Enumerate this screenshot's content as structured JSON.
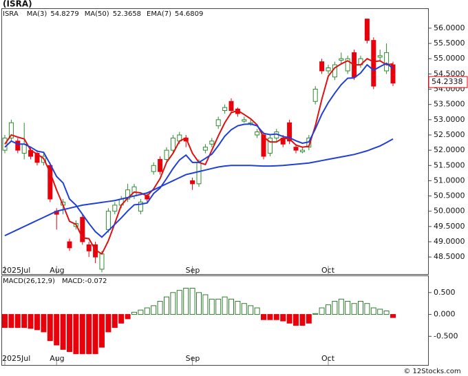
{
  "chart_data": [
    {
      "type": "candlestick",
      "title": "(ISRA)",
      "symbol": "ISRA",
      "categories": [
        "2025Jul",
        null,
        null,
        null,
        null,
        null,
        null,
        null,
        "Aug",
        null,
        null,
        null,
        null,
        null,
        null,
        null,
        null,
        null,
        null,
        null,
        null,
        null,
        null,
        null,
        null,
        null,
        null,
        null,
        null,
        "Sep",
        null,
        null,
        null,
        null,
        null,
        null,
        null,
        null,
        null,
        null,
        null,
        null,
        null,
        null,
        null,
        null,
        null,
        null,
        null,
        null,
        "Oct",
        null,
        null,
        null,
        null,
        null,
        null,
        null,
        null,
        null,
        null
      ],
      "open": [
        52.0,
        52.4,
        52.3,
        51.9,
        52.0,
        51.9,
        51.6,
        51.5,
        50.0,
        50.2,
        49.0,
        49.5,
        49.8,
        48.9,
        48.9,
        48.1,
        49.4,
        50.0,
        50.2,
        50.4,
        50.5,
        50.0,
        50.5,
        51.3,
        51.7,
        51.7,
        52.0,
        52.3,
        52.4,
        51.0,
        50.9,
        52.0,
        52.2,
        52.8,
        53.3,
        53.6,
        53.35,
        52.95,
        52.85,
        52.5,
        52.5,
        51.9,
        52.4,
        52.4,
        52.9,
        52.1,
        51.95,
        52.1,
        53.6,
        54.9,
        54.6,
        54.4,
        54.95,
        54.6,
        55.2,
        54.8,
        56.3,
        55.6,
        55.05,
        54.6,
        54.8
      ],
      "high": [
        52.5,
        53.0,
        52.4,
        52.9,
        52.1,
        52.0,
        51.9,
        51.6,
        50.1,
        50.4,
        49.1,
        49.7,
        49.9,
        49.0,
        49.0,
        48.7,
        50.1,
        50.3,
        50.5,
        50.9,
        50.9,
        50.4,
        50.6,
        51.6,
        51.8,
        52.1,
        52.5,
        52.6,
        52.5,
        51.1,
        51.7,
        52.2,
        52.4,
        53.1,
        53.5,
        53.7,
        53.4,
        53.1,
        53.0,
        52.7,
        52.6,
        52.5,
        52.7,
        52.5,
        53.0,
        52.2,
        52.1,
        52.5,
        54.1,
        55.0,
        54.8,
        54.9,
        55.2,
        55.1,
        55.3,
        55.1,
        56.3,
        55.7,
        55.3,
        55.5,
        54.9
      ],
      "low": [
        51.9,
        52.3,
        51.9,
        51.7,
        51.7,
        51.5,
        51.5,
        50.3,
        49.4,
        49.9,
        48.7,
        49.4,
        48.9,
        48.5,
        48.3,
        48.0,
        49.3,
        49.9,
        50.1,
        50.3,
        50.4,
        49.9,
        50.3,
        51.2,
        51.2,
        51.6,
        51.9,
        52.2,
        52.1,
        50.7,
        50.8,
        51.9,
        52.1,
        52.7,
        53.2,
        53.2,
        53.1,
        52.9,
        52.8,
        52.4,
        51.7,
        51.8,
        52.3,
        52.1,
        52.2,
        51.9,
        51.9,
        52.0,
        53.5,
        54.5,
        54.5,
        54.3,
        54.8,
        54.5,
        54.3,
        54.7,
        55.5,
        54.0,
        54.9,
        54.5,
        54.1
      ],
      "close": [
        52.4,
        52.9,
        52.0,
        52.2,
        51.8,
        51.6,
        51.8,
        50.4,
        49.9,
        50.3,
        48.8,
        49.6,
        49.0,
        48.7,
        48.5,
        48.6,
        50.0,
        50.2,
        50.4,
        50.7,
        50.8,
        50.3,
        50.4,
        51.5,
        51.3,
        52.0,
        52.4,
        52.5,
        52.3,
        50.9,
        51.6,
        52.1,
        52.3,
        53.0,
        53.4,
        53.3,
        53.2,
        53.0,
        52.9,
        52.6,
        51.8,
        52.4,
        52.6,
        52.2,
        52.3,
        52.0,
        52.0,
        52.4,
        54.0,
        54.6,
        54.7,
        54.8,
        55.0,
        55.0,
        54.4,
        55.0,
        55.6,
        54.1,
        55.1,
        55.2,
        54.2
      ],
      "series": [
        {
          "name": "MA(3)",
          "last": 54.8279,
          "color": "#e01010",
          "values": [
            52.2,
            52.5,
            52.43,
            52.37,
            52.0,
            51.87,
            51.73,
            51.27,
            50.7,
            50.2,
            49.67,
            49.57,
            49.13,
            49.1,
            48.73,
            48.6,
            49.03,
            49.6,
            50.2,
            50.43,
            50.63,
            50.6,
            50.5,
            50.73,
            51.07,
            51.6,
            51.9,
            52.3,
            52.4,
            51.9,
            51.6,
            51.53,
            52.0,
            52.47,
            52.9,
            53.23,
            53.3,
            53.17,
            53.03,
            52.83,
            52.43,
            52.27,
            52.27,
            52.4,
            52.37,
            52.17,
            52.1,
            52.13,
            52.8,
            53.67,
            54.43,
            54.7,
            54.83,
            54.93,
            54.8,
            54.8,
            55.0,
            54.9,
            54.93,
            54.8,
            54.83
          ]
        },
        {
          "name": "MA(50)",
          "last": 52.3658,
          "color": "#1f3fd8",
          "values": [
            49.2,
            49.3,
            49.4,
            49.5,
            49.6,
            49.7,
            49.8,
            49.9,
            50.0,
            50.05,
            50.1,
            50.15,
            50.2,
            50.23,
            50.26,
            50.29,
            50.32,
            50.35,
            50.4,
            50.45,
            50.5,
            50.55,
            50.6,
            50.7,
            50.8,
            50.9,
            51.0,
            51.1,
            51.2,
            51.25,
            51.3,
            51.35,
            51.4,
            51.45,
            51.48,
            51.5,
            51.5,
            51.5,
            51.5,
            51.49,
            51.48,
            51.48,
            51.49,
            51.5,
            51.52,
            51.54,
            51.56,
            51.58,
            51.62,
            51.66,
            51.7,
            51.74,
            51.78,
            51.82,
            51.86,
            51.92,
            51.98,
            52.06,
            52.14,
            52.25,
            52.37
          ]
        },
        {
          "name": "EMA(7)",
          "last": 54.6809,
          "color": "#1f3fd8",
          "values": [
            52.1,
            52.3,
            52.2,
            52.2,
            52.1,
            51.97,
            51.93,
            51.55,
            51.14,
            50.93,
            50.4,
            50.2,
            49.9,
            49.6,
            49.33,
            49.15,
            49.36,
            49.57,
            49.78,
            50.01,
            50.21,
            50.23,
            50.27,
            50.58,
            50.76,
            51.07,
            51.4,
            51.68,
            51.84,
            51.6,
            51.6,
            51.73,
            51.87,
            52.15,
            52.46,
            52.67,
            52.8,
            52.85,
            52.86,
            52.8,
            52.55,
            52.51,
            52.53,
            52.45,
            52.41,
            52.31,
            52.23,
            52.27,
            52.7,
            53.18,
            53.56,
            53.87,
            54.15,
            54.36,
            54.37,
            54.53,
            54.8,
            54.62,
            54.74,
            54.85,
            54.68
          ]
        }
      ],
      "up_color": "#2e8b2e",
      "down_color": "#e8000b",
      "last_price": 54.2338,
      "ylim": [
        47.94,
        56.63
      ],
      "yticks": [
        {
          "value": 48.5,
          "label": "48.5000"
        },
        {
          "value": 49.0,
          "label": "49.0000"
        },
        {
          "value": 49.5,
          "label": "49.5000"
        },
        {
          "value": 50.0,
          "label": "50.0000"
        },
        {
          "value": 50.5,
          "label": "50.5000"
        },
        {
          "value": 51.0,
          "label": "51.0000"
        },
        {
          "value": 51.5,
          "label": "51.5000"
        },
        {
          "value": 52.0,
          "label": "52.0000"
        },
        {
          "value": 52.5,
          "label": "52.5000"
        },
        {
          "value": 53.0,
          "label": "53.0000"
        },
        {
          "value": 53.5,
          "label": "53.5000"
        },
        {
          "value": 54.0,
          "label": "54.0000"
        },
        {
          "value": 54.5,
          "label": "54.5000"
        },
        {
          "value": 55.0,
          "label": "55.0000"
        },
        {
          "value": 55.5,
          "label": "55.5000"
        },
        {
          "value": 56.0,
          "label": "56.0000"
        }
      ]
    },
    {
      "type": "bar",
      "title": "MACD(26,12,9)",
      "legend_name": "MACD:",
      "legend_value": -0.072,
      "values": [
        -0.3,
        -0.3,
        -0.3,
        -0.3,
        -0.32,
        -0.35,
        -0.4,
        -0.6,
        -0.7,
        -0.8,
        -0.85,
        -0.9,
        -0.9,
        -0.9,
        -0.9,
        -0.75,
        -0.4,
        -0.3,
        -0.2,
        -0.1,
        0.05,
        0.1,
        0.15,
        0.2,
        0.3,
        0.4,
        0.5,
        0.55,
        0.6,
        0.6,
        0.5,
        0.45,
        0.35,
        0.35,
        0.4,
        0.35,
        0.3,
        0.25,
        0.2,
        0.15,
        -0.12,
        -0.12,
        -0.12,
        -0.15,
        -0.2,
        -0.25,
        -0.25,
        -0.2,
        0.02,
        0.15,
        0.22,
        0.3,
        0.35,
        0.3,
        0.25,
        0.3,
        0.25,
        0.15,
        0.12,
        0.08,
        -0.072
      ],
      "up_color": "#2e7d2e",
      "down_color": "#e8000b",
      "ylim": [
        -1.156,
        0.875
      ],
      "yticks": [
        {
          "value": -0.5,
          "label": "-0.500"
        },
        {
          "value": 0,
          "label": "0.000"
        },
        {
          "value": 0.5,
          "label": "0.500"
        }
      ]
    }
  ],
  "footer": "© 12Stocks.com"
}
